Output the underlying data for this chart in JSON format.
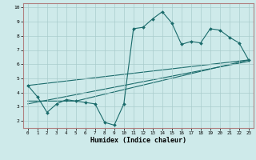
{
  "xlabel": "Humidex (Indice chaleur)",
  "bg_color": "#ceeaea",
  "plot_bg_color": "#ceeaea",
  "line_color": "#1a6b6b",
  "grid_color": "#aacccc",
  "border_color": "#b08080",
  "main_x": [
    0,
    1,
    2,
    3,
    4,
    5,
    6,
    7,
    8,
    9,
    10,
    11,
    12,
    13,
    14,
    15,
    16,
    17,
    18,
    19,
    20,
    21,
    22,
    23
  ],
  "main_y": [
    4.5,
    3.7,
    2.6,
    3.2,
    3.5,
    3.4,
    3.3,
    3.2,
    1.9,
    1.7,
    3.2,
    8.5,
    8.6,
    9.2,
    9.7,
    8.9,
    7.4,
    7.6,
    7.5,
    8.5,
    8.4,
    7.9,
    7.5,
    6.3
  ],
  "trend1_x": [
    0,
    23
  ],
  "trend1_y": [
    4.5,
    6.3
  ],
  "trend2_x": [
    0,
    5,
    23
  ],
  "trend2_y": [
    3.4,
    3.4,
    6.3
  ],
  "trend3_x": [
    0,
    23
  ],
  "trend3_y": [
    3.2,
    6.2
  ],
  "xlim": [
    -0.5,
    23.5
  ],
  "ylim": [
    1.5,
    10.3
  ],
  "xticks": [
    0,
    1,
    2,
    3,
    4,
    5,
    6,
    7,
    8,
    9,
    10,
    11,
    12,
    13,
    14,
    15,
    16,
    17,
    18,
    19,
    20,
    21,
    22,
    23
  ],
  "yticks": [
    2,
    3,
    4,
    5,
    6,
    7,
    8,
    9,
    10
  ]
}
